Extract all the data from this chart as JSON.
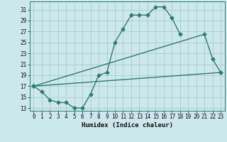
{
  "xlabel": "Humidex (Indice chaleur)",
  "ylabel": "",
  "background_color": "#cce8ec",
  "grid_color": "#aacccc",
  "line_color": "#2e7d72",
  "xlim": [
    -0.5,
    23.5
  ],
  "ylim": [
    12.5,
    32.5
  ],
  "xticks": [
    0,
    1,
    2,
    3,
    4,
    5,
    6,
    7,
    8,
    9,
    10,
    11,
    12,
    13,
    14,
    15,
    16,
    17,
    18,
    19,
    20,
    21,
    22,
    23
  ],
  "yticks": [
    13,
    15,
    17,
    19,
    21,
    23,
    25,
    27,
    29,
    31
  ],
  "series": [
    {
      "x": [
        0,
        1,
        2,
        3,
        4,
        5,
        6,
        7,
        8,
        9,
        10,
        11,
        12,
        13,
        14,
        15,
        16,
        17,
        18
      ],
      "y": [
        17,
        16,
        14.5,
        14,
        14,
        13,
        13,
        15.5,
        19,
        19.5,
        25,
        27.5,
        30,
        30,
        30,
        31.5,
        31.5,
        29.5,
        26.5
      ]
    },
    {
      "x": [
        0,
        21,
        22,
        23
      ],
      "y": [
        17,
        26.5,
        22,
        19.5
      ]
    },
    {
      "x": [
        0,
        23
      ],
      "y": [
        17,
        19.5
      ]
    }
  ]
}
